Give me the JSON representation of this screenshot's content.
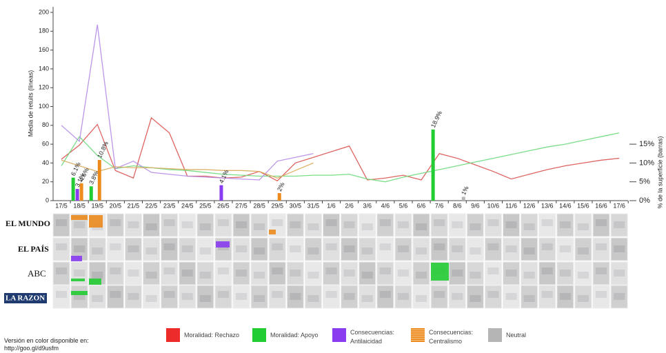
{
  "chart_data": {
    "type": "bar",
    "y_label": "Media de retuits (líneas)",
    "y2_label": "% de la superficie (barras)",
    "categories": [
      "17/5",
      "18/5",
      "19/5",
      "20/5",
      "21/5",
      "22/5",
      "23/5",
      "24/5",
      "25/5",
      "26/5",
      "27/5",
      "28/5",
      "29/5",
      "30/5",
      "31/5",
      "1/6",
      "2/6",
      "3/6",
      "4/6",
      "5/6",
      "6/6",
      "7/6",
      "8/6",
      "9/6",
      "10/6",
      "11/6",
      "12/6",
      "13/6",
      "14/6",
      "15/6",
      "16/6",
      "17/6"
    ],
    "ylim": [
      0,
      200
    ],
    "yticks": [
      0,
      20,
      40,
      60,
      80,
      100,
      120,
      140,
      160,
      180,
      200
    ],
    "y2lim": [
      0,
      50
    ],
    "y2ticks": [
      {
        "value": 0,
        "label": "0%"
      },
      {
        "value": 5,
        "label": "5%"
      },
      {
        "value": 10,
        "label": "10%"
      },
      {
        "value": 15,
        "label": "15%"
      }
    ],
    "lines": [
      {
        "type": "line",
        "color": "#d9534f",
        "values": [
          44,
          59,
          81,
          32,
          24,
          88,
          72,
          26,
          26,
          24,
          25,
          31,
          21,
          40,
          46,
          52,
          58,
          22,
          24,
          27,
          22,
          50,
          45,
          38,
          31,
          23,
          28,
          33,
          37,
          40,
          43,
          45
        ]
      },
      {
        "type": "line",
        "color": "#6bd97b",
        "values": [
          37,
          68,
          48,
          34,
          37,
          35,
          33,
          32,
          30,
          28,
          27,
          26,
          26,
          26,
          27,
          27,
          28,
          23,
          20,
          25,
          29,
          33,
          37,
          41,
          45,
          49,
          53,
          57,
          60,
          64,
          68,
          72
        ]
      },
      {
        "type": "line",
        "color": "#b48ae6",
        "values": [
          80,
          63,
          187,
          34,
          42,
          30,
          28,
          26,
          25,
          24,
          23,
          22,
          42,
          46,
          50,
          null,
          null,
          null,
          null,
          null,
          null,
          null,
          null,
          null,
          null,
          null,
          null,
          null,
          null,
          null,
          null,
          null
        ]
      },
      {
        "type": "line",
        "color": "#d9aa5c",
        "values": [
          43,
          37,
          31,
          36,
          35,
          35,
          34,
          33,
          33,
          32,
          32,
          31,
          24,
          32,
          40,
          null,
          null,
          null,
          null,
          null,
          null,
          null,
          null,
          null,
          null,
          null,
          null,
          null,
          null,
          null,
          null,
          null
        ]
      }
    ],
    "series": [
      {
        "name": "Moralidad: Rechazo",
        "color": "#ee2b2b",
        "axis": "y2",
        "values": [
          null,
          null,
          null,
          null,
          null,
          null,
          null,
          null,
          null,
          null,
          null,
          null,
          null,
          null,
          null,
          null,
          null,
          null,
          null,
          null,
          null,
          null,
          null,
          null,
          null,
          null,
          null,
          null,
          null,
          null,
          null,
          null
        ]
      },
      {
        "name": "Moralidad: Apoyo",
        "color": "#22cc33",
        "axis": "y2",
        "values": [
          null,
          6.1,
          3.8,
          null,
          null,
          null,
          null,
          null,
          null,
          null,
          null,
          null,
          null,
          null,
          null,
          null,
          null,
          null,
          null,
          null,
          null,
          18.9,
          null,
          null,
          null,
          null,
          null,
          null,
          null,
          null,
          null,
          null
        ],
        "value_labels": [
          null,
          "6.1%",
          "3.8%",
          null,
          null,
          null,
          null,
          null,
          null,
          null,
          null,
          null,
          null,
          null,
          null,
          null,
          null,
          null,
          null,
          null,
          null,
          "18.9%",
          null,
          null,
          null,
          null,
          null,
          null,
          null,
          null,
          null,
          null
        ]
      },
      {
        "name": "Consecuencias: Antilaicidad",
        "color": "#8a3cf0",
        "axis": "y2",
        "values": [
          null,
          3.1,
          null,
          null,
          null,
          null,
          null,
          null,
          null,
          4.1,
          null,
          null,
          null,
          null,
          null,
          null,
          null,
          null,
          null,
          null,
          null,
          null,
          null,
          null,
          null,
          null,
          null,
          null,
          null,
          null,
          null,
          null
        ],
        "value_labels": [
          null,
          "3.1%",
          null,
          null,
          null,
          null,
          null,
          null,
          null,
          "4.1%",
          null,
          null,
          null,
          null,
          null,
          null,
          null,
          null,
          null,
          null,
          null,
          null,
          null,
          null,
          null,
          null,
          null,
          null,
          null,
          null,
          null,
          null
        ]
      },
      {
        "name": "Consecuencias: Centralismo",
        "color": "#ec8a1e",
        "axis": "y2",
        "values": [
          null,
          4.6,
          10.8,
          null,
          null,
          null,
          null,
          null,
          null,
          null,
          null,
          null,
          2,
          null,
          null,
          null,
          null,
          null,
          null,
          null,
          null,
          null,
          null,
          null,
          null,
          null,
          null,
          null,
          null,
          null,
          null,
          null
        ],
        "value_labels": [
          null,
          "4.6%",
          "10.8%",
          null,
          null,
          null,
          null,
          null,
          null,
          null,
          null,
          null,
          "2%",
          null,
          null,
          null,
          null,
          null,
          null,
          null,
          null,
          null,
          null,
          null,
          null,
          null,
          null,
          null,
          null,
          null,
          null,
          null
        ]
      },
      {
        "name": "Neutral",
        "color": "#b5b5b5",
        "axis": "y2",
        "values": [
          null,
          null,
          null,
          null,
          null,
          null,
          null,
          null,
          null,
          null,
          null,
          null,
          null,
          null,
          null,
          null,
          null,
          null,
          null,
          null,
          null,
          null,
          1,
          null,
          null,
          null,
          null,
          null,
          null,
          null,
          null,
          null
        ],
        "value_labels": [
          null,
          null,
          null,
          null,
          null,
          null,
          null,
          null,
          null,
          null,
          null,
          null,
          null,
          null,
          null,
          null,
          null,
          null,
          null,
          null,
          null,
          null,
          "1%",
          null,
          null,
          null,
          null,
          null,
          null,
          null,
          null,
          null
        ]
      }
    ],
    "newspapers": [
      "EL MUNDO",
      "EL PAÍS",
      "ABC",
      "LA RAZON"
    ],
    "footer": [
      "Versión en color disponible en:",
      "http://goo.gl/d9usfm"
    ]
  }
}
